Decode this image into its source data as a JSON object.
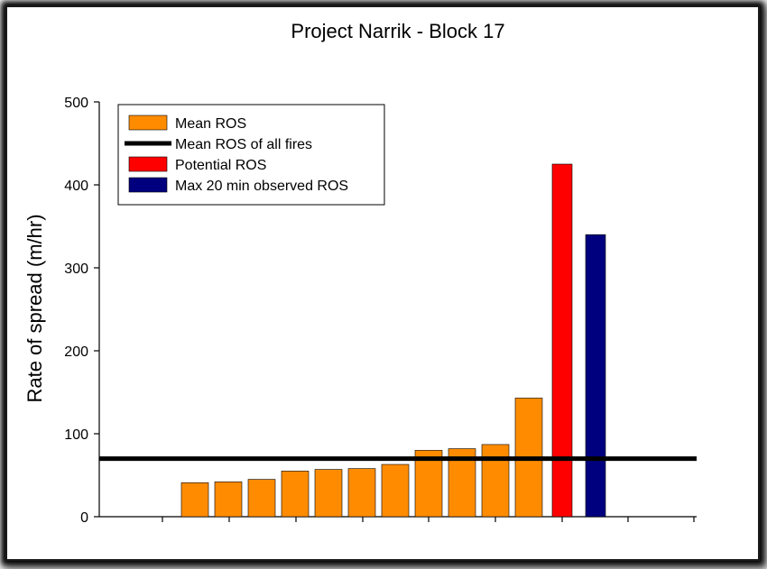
{
  "chart_data": {
    "type": "bar",
    "title": "Project Narrik - Block 17",
    "xlabel": "",
    "ylabel": "Rate of spread (m/hr)",
    "ylim": [
      0,
      500
    ],
    "yticks": [
      0,
      100,
      200,
      300,
      400,
      500
    ],
    "grid": false,
    "legend_position": "top-left",
    "series": [
      {
        "name": "Mean ROS",
        "color": "#ff8c00",
        "values": [
          41,
          42,
          45,
          55,
          57,
          58,
          63,
          80,
          82,
          87,
          143
        ]
      },
      {
        "name": "Potential ROS",
        "color": "#ff0000",
        "values": [
          425
        ]
      },
      {
        "name": "Max 20 min observed ROS",
        "color": "#00007f",
        "values": [
          340
        ]
      }
    ],
    "reference_line": {
      "name": "Mean ROS of all fires",
      "value": 70,
      "color": "#000000"
    },
    "legend": [
      {
        "label": "Mean ROS",
        "kind": "box",
        "color": "#ff8c00"
      },
      {
        "label": "Mean ROS of all fires",
        "kind": "line",
        "color": "#000000"
      },
      {
        "label": "Potential ROS",
        "kind": "box",
        "color": "#ff0000"
      },
      {
        "label": "Max 20 min observed ROS",
        "kind": "box",
        "color": "#00007f"
      }
    ]
  }
}
